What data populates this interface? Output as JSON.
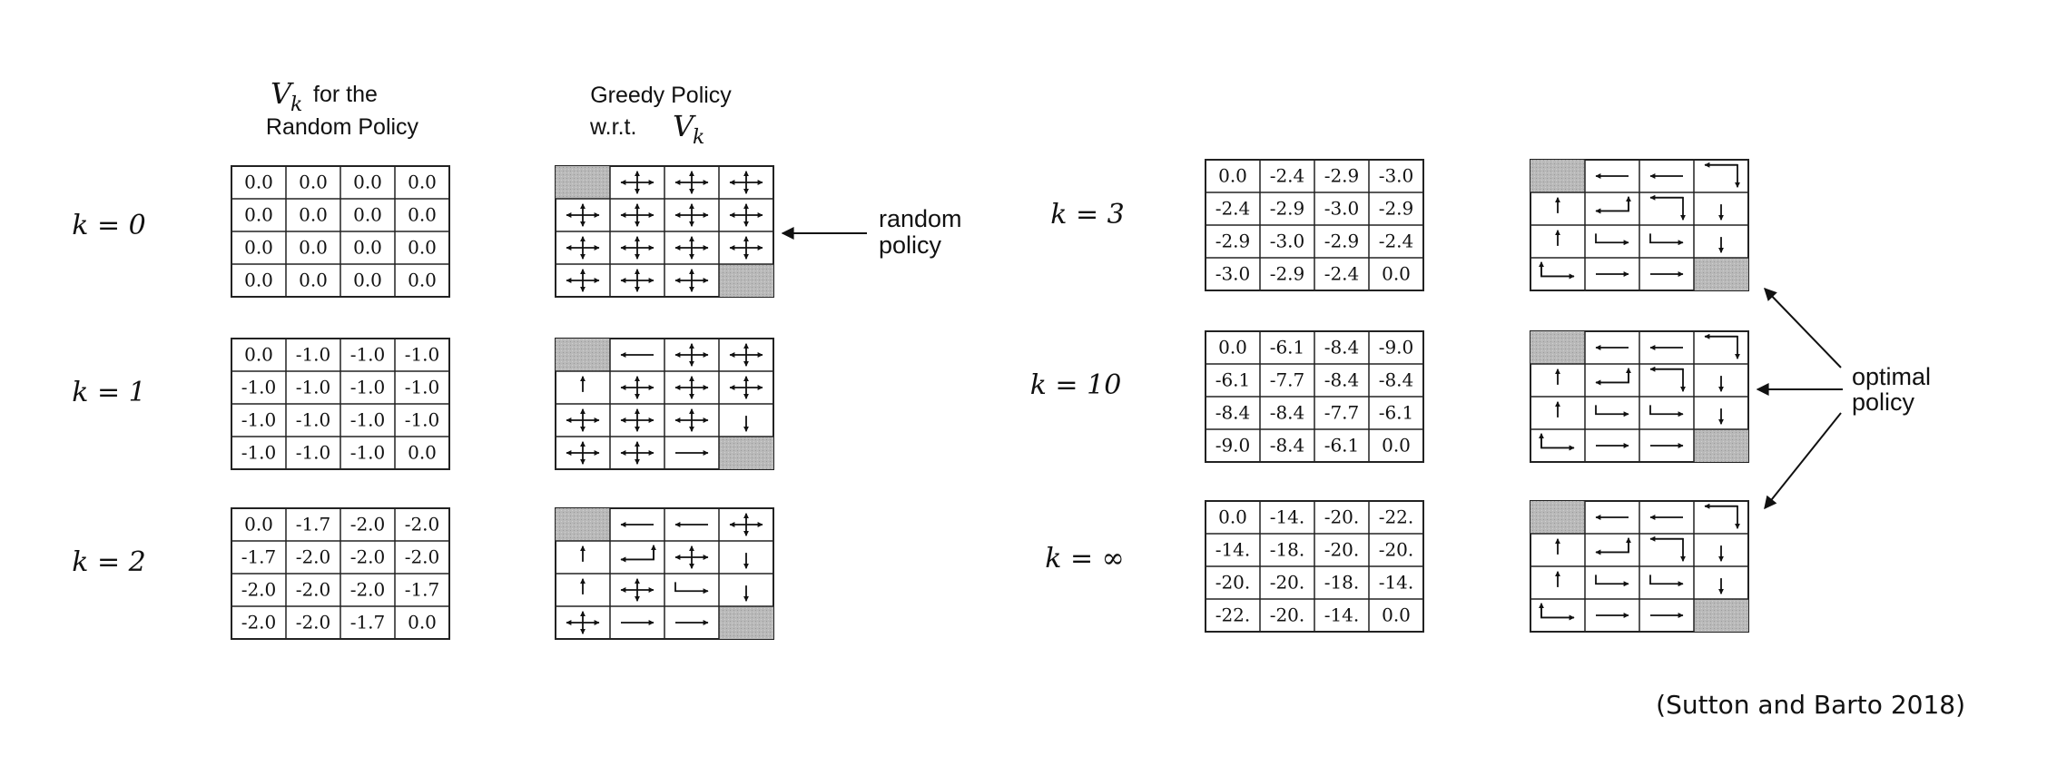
{
  "headers": {
    "value_col": {
      "symbol": "V",
      "subscript": "k",
      "line1_rest": "for the",
      "line2": "Random Policy"
    },
    "policy_col": {
      "line1": "Greedy Policy",
      "line2_prefix": "w.r.t.",
      "symbol": "V",
      "subscript": "k"
    }
  },
  "annotations": {
    "random_policy": [
      "random",
      "policy"
    ],
    "optimal_policy": [
      "optimal",
      "policy"
    ]
  },
  "citation": "(Sutton and Barto 2018)",
  "iterations": [
    {
      "k_label": "k = 0",
      "values": [
        [
          "0.0",
          "0.0",
          "0.0",
          "0.0"
        ],
        [
          "0.0",
          "0.0",
          "0.0",
          "0.0"
        ],
        [
          "0.0",
          "0.0",
          "0.0",
          "0.0"
        ],
        [
          "0.0",
          "0.0",
          "0.0",
          "0.0"
        ]
      ],
      "policy": [
        [
          "T",
          "NESW",
          "NESW",
          "NESW"
        ],
        [
          "NESW",
          "NESW",
          "NESW",
          "NESW"
        ],
        [
          "NESW",
          "NESW",
          "NESW",
          "NESW"
        ],
        [
          "NESW",
          "NESW",
          "NESW",
          "T"
        ]
      ]
    },
    {
      "k_label": "k = 1",
      "values": [
        [
          "0.0",
          "-1.0",
          "-1.0",
          "-1.0"
        ],
        [
          "-1.0",
          "-1.0",
          "-1.0",
          "-1.0"
        ],
        [
          "-1.0",
          "-1.0",
          "-1.0",
          "-1.0"
        ],
        [
          "-1.0",
          "-1.0",
          "-1.0",
          "0.0"
        ]
      ],
      "policy": [
        [
          "T",
          "W",
          "NESW",
          "NESW"
        ],
        [
          "N",
          "NESW",
          "NESW",
          "NESW"
        ],
        [
          "NESW",
          "NESW",
          "NESW",
          "S"
        ],
        [
          "NESW",
          "NESW",
          "E",
          "T"
        ]
      ]
    },
    {
      "k_label": "k = 2",
      "values": [
        [
          "0.0",
          "-1.7",
          "-2.0",
          "-2.0"
        ],
        [
          "-1.7",
          "-2.0",
          "-2.0",
          "-2.0"
        ],
        [
          "-2.0",
          "-2.0",
          "-2.0",
          "-1.7"
        ],
        [
          "-2.0",
          "-2.0",
          "-1.7",
          "0.0"
        ]
      ],
      "policy": [
        [
          "T",
          "W",
          "W",
          "NESW"
        ],
        [
          "N",
          "NW",
          "NESW",
          "S"
        ],
        [
          "N",
          "NESW",
          "SE",
          "S"
        ],
        [
          "NESW",
          "E",
          "E",
          "T"
        ]
      ]
    },
    {
      "k_label": "k = 3",
      "values": [
        [
          "0.0",
          "-2.4",
          "-2.9",
          "-3.0"
        ],
        [
          "-2.4",
          "-2.9",
          "-3.0",
          "-2.9"
        ],
        [
          "-2.9",
          "-3.0",
          "-2.9",
          "-2.4"
        ],
        [
          "-3.0",
          "-2.9",
          "-2.4",
          "0.0"
        ]
      ],
      "policy": [
        [
          "T",
          "W",
          "W",
          "SW"
        ],
        [
          "N",
          "NW",
          "SW",
          "S"
        ],
        [
          "N",
          "SE",
          "SE",
          "S"
        ],
        [
          "NE",
          "E",
          "E",
          "T"
        ]
      ]
    },
    {
      "k_label": "k = 10",
      "values": [
        [
          "0.0",
          "-6.1",
          "-8.4",
          "-9.0"
        ],
        [
          "-6.1",
          "-7.7",
          "-8.4",
          "-8.4"
        ],
        [
          "-8.4",
          "-8.4",
          "-7.7",
          "-6.1"
        ],
        [
          "-9.0",
          "-8.4",
          "-6.1",
          "0.0"
        ]
      ],
      "policy": [
        [
          "T",
          "W",
          "W",
          "SW"
        ],
        [
          "N",
          "NW",
          "SW",
          "S"
        ],
        [
          "N",
          "SE",
          "SE",
          "S"
        ],
        [
          "NE",
          "E",
          "E",
          "T"
        ]
      ]
    },
    {
      "k_label": "k = ∞",
      "values": [
        [
          "0.0",
          "-14.",
          "-20.",
          "-22."
        ],
        [
          "-14.",
          "-18.",
          "-20.",
          "-20."
        ],
        [
          "-20.",
          "-20.",
          "-18.",
          "-14."
        ],
        [
          "-22.",
          "-20.",
          "-14.",
          "0.0"
        ]
      ],
      "policy": [
        [
          "T",
          "W",
          "W",
          "SW"
        ],
        [
          "N",
          "NW",
          "SW",
          "S"
        ],
        [
          "N",
          "SE",
          "SE",
          "S"
        ],
        [
          "NE",
          "E",
          "E",
          "T"
        ]
      ]
    }
  ]
}
